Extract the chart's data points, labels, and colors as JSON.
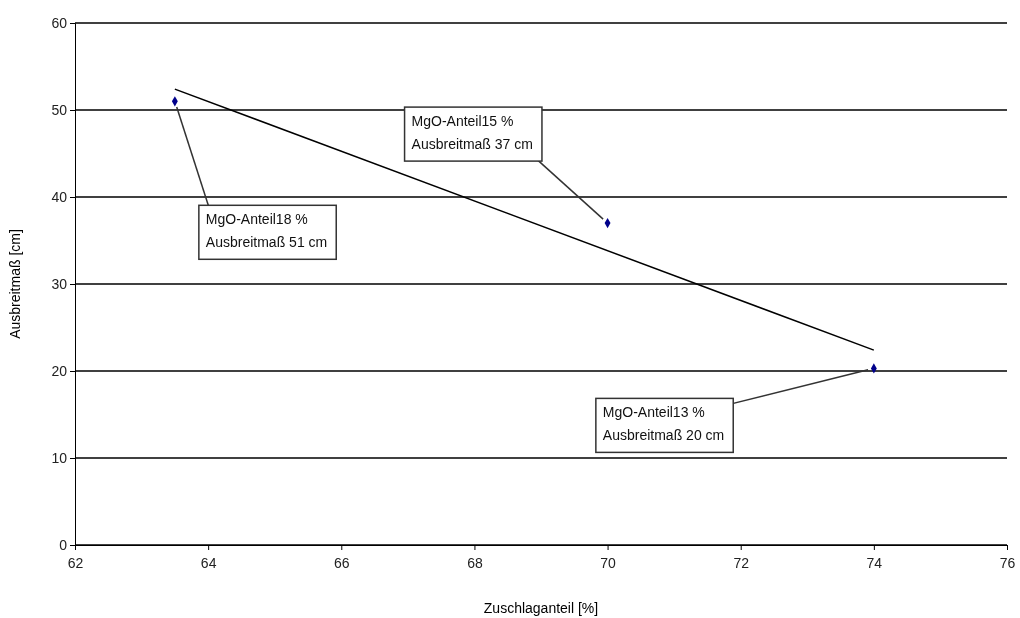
{
  "chart_data": {
    "type": "scatter",
    "xlabel": "Zuschlaganteil [%]",
    "ylabel": "Ausbreitmaß [cm]",
    "xlim": [
      62,
      76
    ],
    "xticks": [
      62,
      64,
      66,
      68,
      70,
      72,
      74,
      76
    ],
    "ylim": [
      0,
      60
    ],
    "yticks": [
      0,
      10,
      20,
      30,
      40,
      50,
      60
    ],
    "grid": "y",
    "series": [
      {
        "type": "scatter",
        "color": "#00008b",
        "marker": "diamond",
        "x": [
          63.5,
          70,
          74
        ],
        "values": [
          51,
          37,
          20.3
        ]
      },
      {
        "type": "line",
        "color": "#000000",
        "x": [
          63.5,
          74
        ],
        "values": [
          52.4,
          22.4
        ]
      }
    ],
    "annotations": [
      {
        "text": "MgO-Anteil18 %\nAusbreitmaß 51 cm",
        "x": 63.5,
        "y": 51
      },
      {
        "text": "MgO-Anteil15 %\nAusbreitmaß 37 cm",
        "x": 70,
        "y": 37
      },
      {
        "text": "MgO-Anteil13 %\nAusbreitmaß 20 cm",
        "x": 74,
        "y": 20.3
      }
    ]
  }
}
